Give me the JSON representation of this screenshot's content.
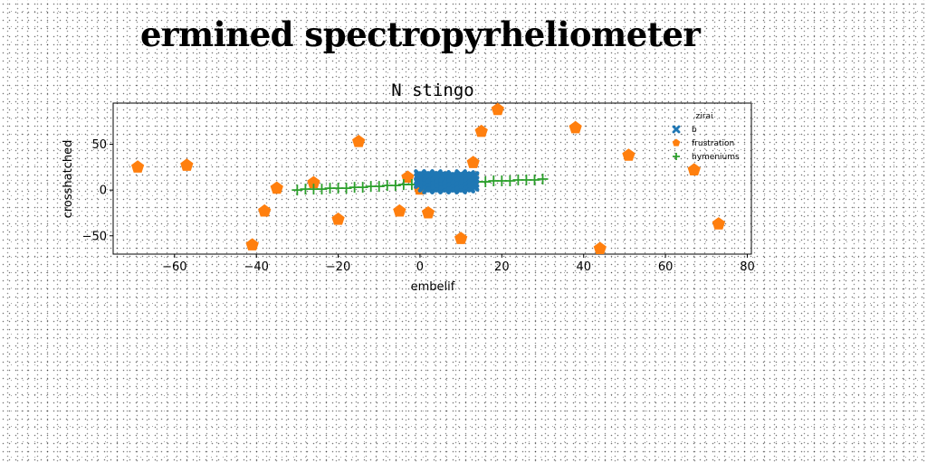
{
  "page": {
    "title": "ermined spectropyrheliometer"
  },
  "colors": {
    "b": "#1f77b4",
    "frustration": "#ff7f0e",
    "hymeniums": "#2ca02c"
  },
  "chart_data": {
    "type": "scatter",
    "title": "N stingo",
    "xlabel": "embelif",
    "ylabel": "crosshatched",
    "xlim": [
      -75,
      81
    ],
    "ylim": [
      -70,
      95
    ],
    "xticks": [
      -60,
      -40,
      -20,
      0,
      20,
      40,
      60,
      80
    ],
    "yticks": [
      -50,
      0,
      50
    ],
    "grid": false,
    "legend": {
      "title": "zirai",
      "placement": "upper-right"
    },
    "series": [
      {
        "name": "b",
        "marker": "x-filled",
        "color": "#1f77b4",
        "points": [
          [
            0,
            8
          ],
          [
            0,
            12
          ],
          [
            0,
            16
          ],
          [
            1,
            4
          ],
          [
            1,
            9
          ],
          [
            1,
            14
          ],
          [
            2,
            2
          ],
          [
            2,
            7
          ],
          [
            2,
            11
          ],
          [
            2,
            16
          ],
          [
            3,
            5
          ],
          [
            3,
            10
          ],
          [
            3,
            14
          ],
          [
            4,
            2
          ],
          [
            4,
            7
          ],
          [
            4,
            12
          ],
          [
            4,
            16
          ],
          [
            5,
            4
          ],
          [
            5,
            9
          ],
          [
            5,
            14
          ],
          [
            6,
            2
          ],
          [
            6,
            6
          ],
          [
            6,
            11
          ],
          [
            6,
            15
          ],
          [
            7,
            4
          ],
          [
            7,
            8
          ],
          [
            7,
            13
          ],
          [
            8,
            2
          ],
          [
            8,
            6
          ],
          [
            8,
            10
          ],
          [
            8,
            15
          ],
          [
            9,
            4
          ],
          [
            9,
            9
          ],
          [
            9,
            13
          ],
          [
            10,
            2
          ],
          [
            10,
            6
          ],
          [
            10,
            11
          ],
          [
            10,
            16
          ],
          [
            11,
            4
          ],
          [
            11,
            8
          ],
          [
            11,
            13
          ],
          [
            12,
            3
          ],
          [
            12,
            7
          ],
          [
            12,
            11
          ],
          [
            12,
            15
          ],
          [
            13,
            5
          ],
          [
            13,
            9
          ],
          [
            13,
            14
          ]
        ]
      },
      {
        "name": "frustration",
        "marker": "pentagon",
        "color": "#ff7f0e",
        "points": [
          [
            -69,
            25
          ],
          [
            -57,
            27
          ],
          [
            -41,
            -60
          ],
          [
            -38,
            -23
          ],
          [
            -35,
            2
          ],
          [
            -26,
            8
          ],
          [
            -20,
            -32
          ],
          [
            -15,
            53
          ],
          [
            -5,
            -23
          ],
          [
            -3,
            14
          ],
          [
            0,
            1
          ],
          [
            2,
            -25
          ],
          [
            10,
            -53
          ],
          [
            13,
            30
          ],
          [
            15,
            64
          ],
          [
            19,
            88
          ],
          [
            38,
            68
          ],
          [
            44,
            -64
          ],
          [
            51,
            38
          ],
          [
            67,
            22
          ],
          [
            73,
            -37
          ]
        ]
      },
      {
        "name": "hymeniums",
        "marker": "plus",
        "color": "#2ca02c",
        "points": [
          [
            -30,
            0
          ],
          [
            -28,
            1
          ],
          [
            -26,
            1
          ],
          [
            -24,
            1
          ],
          [
            -22,
            2
          ],
          [
            -20,
            2
          ],
          [
            -18,
            2
          ],
          [
            -16,
            3
          ],
          [
            -14,
            3
          ],
          [
            -12,
            4
          ],
          [
            -10,
            4
          ],
          [
            -8,
            5
          ],
          [
            -6,
            5
          ],
          [
            -4,
            6
          ],
          [
            -2,
            6
          ],
          [
            0,
            6
          ],
          [
            2,
            7
          ],
          [
            4,
            7
          ],
          [
            6,
            7
          ],
          [
            8,
            8
          ],
          [
            10,
            8
          ],
          [
            12,
            8
          ],
          [
            14,
            9
          ],
          [
            16,
            9
          ],
          [
            18,
            10
          ],
          [
            20,
            10
          ],
          [
            22,
            10
          ],
          [
            24,
            11
          ],
          [
            26,
            11
          ],
          [
            28,
            11
          ],
          [
            30,
            12
          ]
        ]
      }
    ]
  }
}
